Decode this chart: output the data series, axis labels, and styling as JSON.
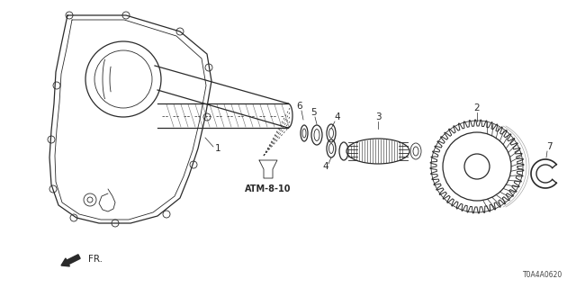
{
  "bg_color": "#ffffff",
  "line_color": "#2a2a2a",
  "part_number_text": "T0A4A0620",
  "ref_text": "ATM-8-10",
  "fr_text": "FR.",
  "figsize": [
    6.4,
    3.2
  ],
  "dpi": 100
}
